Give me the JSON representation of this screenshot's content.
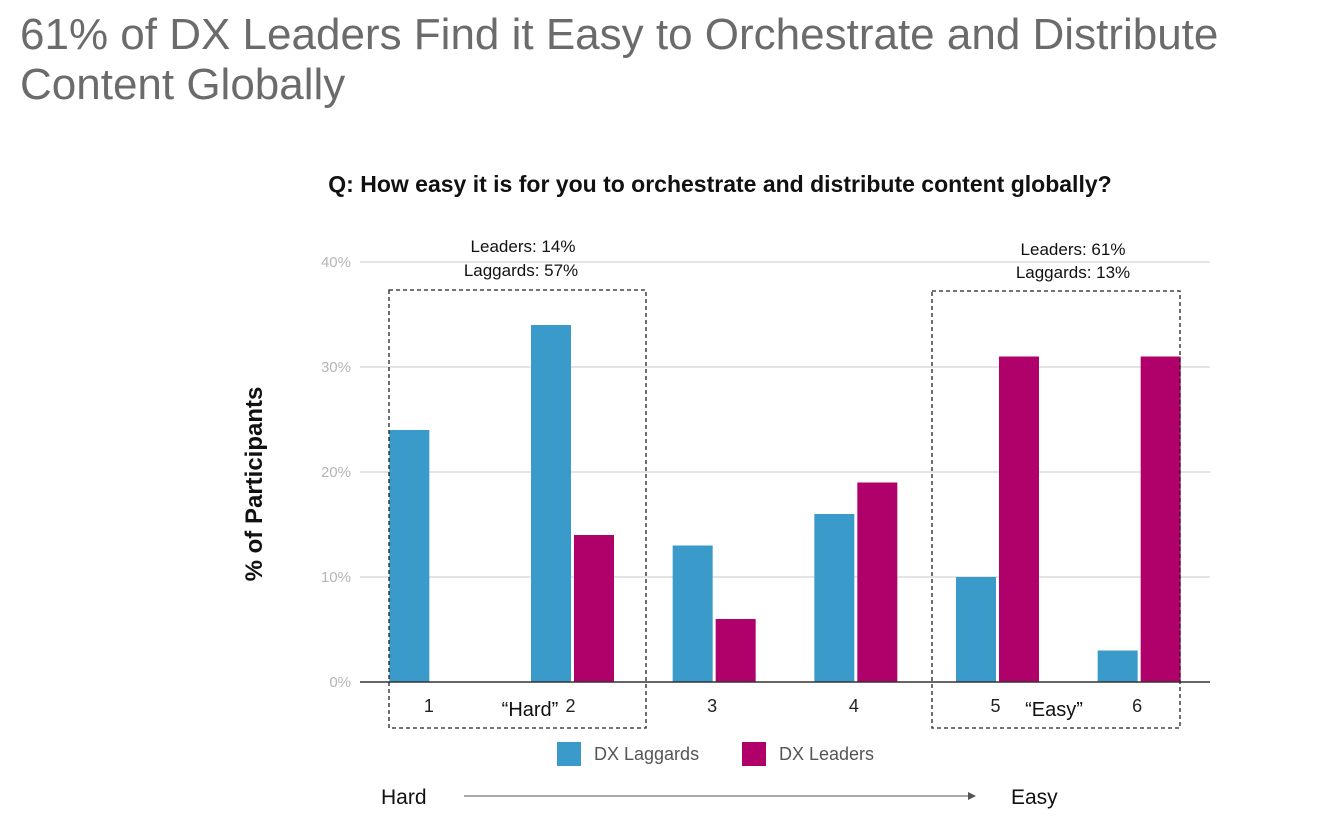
{
  "slide": {
    "title": "61% of DX Leaders Find it Easy to Orchestrate and Distribute Content Globally"
  },
  "chart_data": {
    "type": "bar",
    "title": "Q: How easy it is for you to orchestrate and distribute content globally?",
    "ylabel": "% of Participants",
    "xlabel": "",
    "ylim": [
      0,
      40
    ],
    "yticks": [
      "0%",
      "10%",
      "20%",
      "30%",
      "40%"
    ],
    "categories": [
      "1",
      "2",
      "3",
      "4",
      "5",
      "6"
    ],
    "series": [
      {
        "name": "DX Laggards",
        "color": "#3a9ac9",
        "values": [
          24,
          34,
          13,
          16,
          10,
          3
        ]
      },
      {
        "name": "DX Leaders",
        "color": "#b0006a",
        "values": [
          0,
          14,
          6,
          19,
          31,
          31
        ]
      }
    ],
    "grid": true,
    "legend": "bottom",
    "annotations": {
      "left_box": {
        "line1": "Leaders: 14%",
        "line2": "Laggards: 57%",
        "label": "“Hard”"
      },
      "right_box": {
        "line1": "Leaders: 61%",
        "line2": "Laggards: 13%",
        "label": "“Easy”"
      }
    },
    "scale": {
      "start": "Hard",
      "end": "Easy"
    }
  }
}
